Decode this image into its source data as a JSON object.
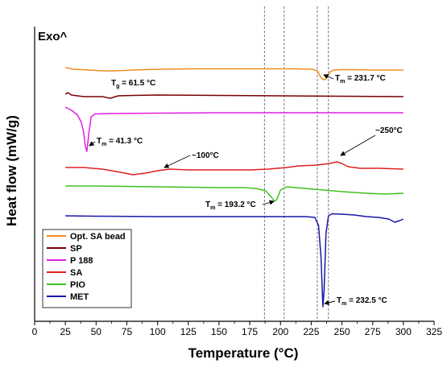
{
  "chart_data": {
    "type": "line",
    "xlabel": "Temperature (°C)",
    "ylabel": "Heat flow (mW/g)",
    "exo_label": "Exo^",
    "xlim": [
      0,
      325
    ],
    "xticks": [
      0,
      25,
      50,
      75,
      100,
      125,
      150,
      175,
      200,
      225,
      250,
      275,
      300,
      325
    ],
    "vlines": [
      187,
      203,
      230,
      239
    ],
    "series": [
      {
        "name": "Opt. SA bead",
        "color": "#F28C1E",
        "points": [
          [
            25,
            84
          ],
          [
            32,
            86
          ],
          [
            45,
            87
          ],
          [
            55,
            88
          ],
          [
            65,
            88
          ],
          [
            80,
            87
          ],
          [
            100,
            86
          ],
          [
            125,
            85.5
          ],
          [
            150,
            85.5
          ],
          [
            175,
            85.5
          ],
          [
            200,
            85.5
          ],
          [
            215,
            85.5
          ],
          [
            226,
            86
          ],
          [
            230,
            88
          ],
          [
            232,
            94
          ],
          [
            234,
            98
          ],
          [
            236,
            99
          ],
          [
            238,
            96
          ],
          [
            240,
            90
          ],
          [
            243,
            87
          ],
          [
            250,
            86.5
          ],
          [
            260,
            86.5
          ],
          [
            275,
            87
          ],
          [
            290,
            87
          ],
          [
            300,
            87
          ]
        ]
      },
      {
        "name": "SP",
        "color": "#7A0000",
        "points": [
          [
            25,
            117
          ],
          [
            27,
            115
          ],
          [
            30,
            118
          ],
          [
            40,
            120
          ],
          [
            55,
            120
          ],
          [
            61.5,
            122
          ],
          [
            68,
            119
          ],
          [
            80,
            118.5
          ],
          [
            100,
            118
          ],
          [
            150,
            118.5
          ],
          [
            200,
            119
          ],
          [
            250,
            119.5
          ],
          [
            300,
            120
          ]
        ]
      },
      {
        "name": "P 188",
        "color": "#E020E0",
        "points": [
          [
            25,
            133
          ],
          [
            30,
            137
          ],
          [
            35,
            143
          ],
          [
            38,
            152
          ],
          [
            40,
            165
          ],
          [
            41.3,
            182
          ],
          [
            42.5,
            188
          ],
          [
            44,
            166
          ],
          [
            46,
            145
          ],
          [
            49,
            141.5
          ],
          [
            60,
            141
          ],
          [
            100,
            140.5
          ],
          [
            150,
            140
          ],
          [
            200,
            140
          ],
          [
            250,
            140
          ],
          [
            300,
            140
          ]
        ]
      },
      {
        "name": "SA",
        "color": "#E02020",
        "points": [
          [
            25,
            208
          ],
          [
            40,
            208
          ],
          [
            55,
            210
          ],
          [
            70,
            214
          ],
          [
            80,
            217
          ],
          [
            90,
            215
          ],
          [
            100,
            212
          ],
          [
            110,
            210
          ],
          [
            125,
            211
          ],
          [
            150,
            211
          ],
          [
            175,
            211
          ],
          [
            190,
            210
          ],
          [
            205,
            208
          ],
          [
            215,
            206
          ],
          [
            230,
            205
          ],
          [
            240,
            203
          ],
          [
            246,
            201
          ],
          [
            250,
            203
          ],
          [
            255,
            207
          ],
          [
            265,
            209
          ],
          [
            280,
            209
          ],
          [
            300,
            210
          ]
        ]
      },
      {
        "name": "PIO",
        "color": "#40C020",
        "points": [
          [
            25,
            231
          ],
          [
            50,
            231
          ],
          [
            100,
            232
          ],
          [
            150,
            233
          ],
          [
            170,
            233
          ],
          [
            180,
            234
          ],
          [
            188,
            237
          ],
          [
            193.2,
            246
          ],
          [
            195,
            250
          ],
          [
            197,
            248
          ],
          [
            200,
            236
          ],
          [
            205,
            232
          ],
          [
            220,
            234
          ],
          [
            235,
            236
          ],
          [
            250,
            238
          ],
          [
            270,
            240
          ],
          [
            285,
            241
          ],
          [
            300,
            240
          ]
        ]
      },
      {
        "name": "MET",
        "color": "#1818A8",
        "points": [
          [
            25,
            268
          ],
          [
            50,
            268.5
          ],
          [
            100,
            269
          ],
          [
            150,
            269
          ],
          [
            200,
            269
          ],
          [
            220,
            269
          ],
          [
            228,
            270
          ],
          [
            231,
            280
          ],
          [
            233,
            320
          ],
          [
            234.5,
            381
          ],
          [
            235.5,
            360
          ],
          [
            237,
            290
          ],
          [
            239,
            268
          ],
          [
            242,
            265.5
          ],
          [
            250,
            266
          ],
          [
            260,
            267
          ],
          [
            270,
            269
          ],
          [
            280,
            270
          ],
          [
            288,
            272
          ],
          [
            293,
            276
          ],
          [
            297,
            274
          ],
          [
            300,
            272
          ]
        ]
      }
    ],
    "annotations": [
      {
        "id": "tm-sa-bead",
        "prefix": "T",
        "sub": "m",
        "text": " = 231.7 °C"
      },
      {
        "id": "tg-sp",
        "prefix": "T",
        "sub": "g",
        "text": " = 61.5 °C"
      },
      {
        "id": "tm-p188",
        "prefix": "T",
        "sub": "m",
        "text": " = 41.3 °C"
      },
      {
        "id": "sa-100",
        "prefix": "",
        "sub": "",
        "text": "~100°C"
      },
      {
        "id": "sa-250",
        "prefix": "",
        "sub": "",
        "text": "~250°C"
      },
      {
        "id": "tm-pio",
        "prefix": "T",
        "sub": "m",
        "text": " = 193.2 °C"
      },
      {
        "id": "tm-met",
        "prefix": "T",
        "sub": "m",
        "text": " = 232.5 °C"
      }
    ]
  }
}
